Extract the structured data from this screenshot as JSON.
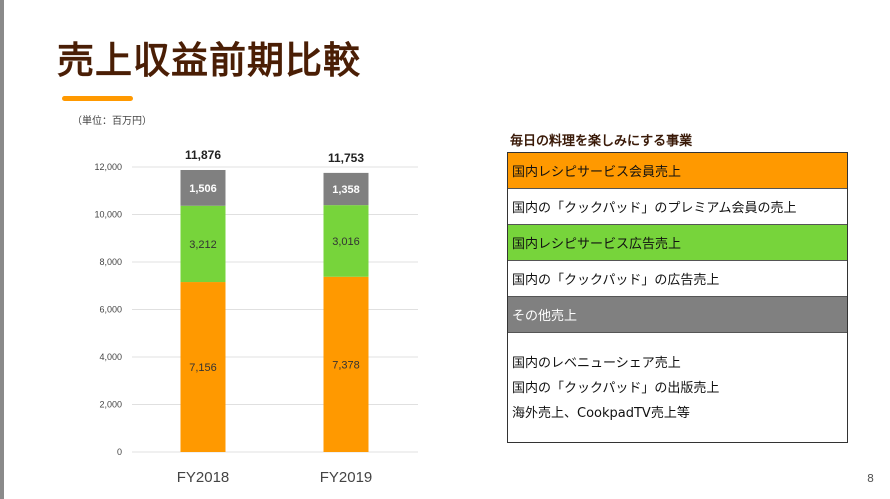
{
  "title": "売上収益前期比較",
  "unit_note": "（単位：百万円）",
  "page_number": "8",
  "chart_data": {
    "type": "stacked-bar",
    "categories": [
      "FY2018",
      "FY2019"
    ],
    "series": [
      {
        "values": [
          7156,
          7378
        ],
        "labels": [
          "7,156",
          "7,378"
        ],
        "color": "#ff9900"
      },
      {
        "values": [
          3212,
          3016
        ],
        "labels": [
          "3,212",
          "3,016"
        ],
        "color": "#77d43b"
      },
      {
        "values": [
          1506,
          1358
        ],
        "labels": [
          "1,506",
          "1,358"
        ],
        "color": "#808080"
      }
    ],
    "totals": [
      "11,876",
      "11,753"
    ],
    "ylim": [
      0,
      12000
    ],
    "yticks": [
      0,
      2000,
      4000,
      6000,
      8000,
      10000,
      12000
    ],
    "ytick_labels": [
      "0",
      "2,000",
      "4,000",
      "6,000",
      "8,000",
      "10,000",
      "12,000"
    ],
    "grid": true
  },
  "legend_table": {
    "heading": "毎日の料理を楽しみにする事業",
    "rows": [
      {
        "text": "国内レシピサービス会員売上",
        "bg": "#ff9900",
        "color": "#111111"
      },
      {
        "text": "国内の「クックパッド」のプレミアム会員の売上",
        "bg": "#ffffff",
        "color": "#111111"
      },
      {
        "text": "国内レシピサービス広告売上",
        "bg": "#77d43b",
        "color": "#111111"
      },
      {
        "text": "国内の「クックパッド」の広告売上",
        "bg": "#ffffff",
        "color": "#111111"
      },
      {
        "text": "その他売上",
        "bg": "#808080",
        "color": "#ffffff"
      }
    ],
    "other_lines": [
      "国内のレベニューシェア売上",
      "国内の「クックパッド」の出版売上",
      "海外売上、CookpadTV売上等"
    ]
  }
}
